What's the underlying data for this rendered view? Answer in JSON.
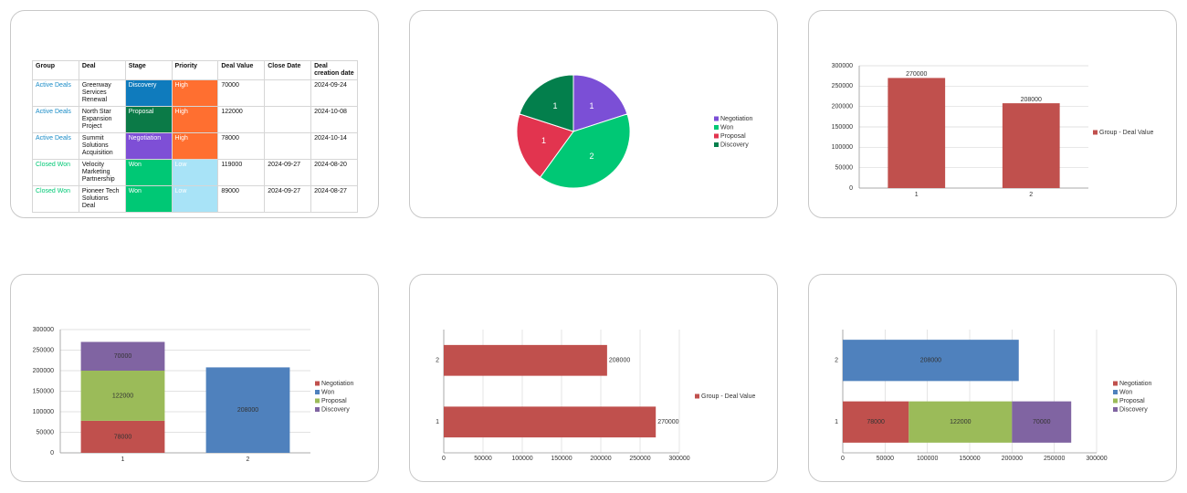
{
  "table": {
    "headers": [
      "Group",
      "Deal",
      "Stage",
      "Priority",
      "Deal Value",
      "Close Date",
      "Deal creation date"
    ],
    "rows": [
      [
        "Active Deals",
        "Greenway Services Renewal",
        "Discovery",
        "High",
        70000,
        null,
        "2024-09-24"
      ],
      [
        "Active Deals",
        "North Star Expansion Project",
        "Proposal",
        "High",
        122000,
        null,
        "2024-10-08"
      ],
      [
        "Active Deals",
        "Summit Solutions Acquisition",
        "Negotiation",
        "High",
        78000,
        null,
        "2024-10-14"
      ],
      [
        "Closed Won",
        "Velocity Marketing Partnership",
        "Won",
        "Low",
        119000,
        "2024-09-27",
        "2024-08-20"
      ],
      [
        "Closed Won",
        "Pioneer Tech Solutions Deal",
        "Won",
        "Low",
        89000,
        "2024-09-27",
        "2024-08-27"
      ]
    ],
    "group_colors": {
      "Active Deals": "#1a8cc7",
      "Closed Won": "#00c875"
    },
    "stage_colors": {
      "Discovery": "#0f7bbd",
      "Proposal": "#0b7a47",
      "Negotiation": "#7e4fd6",
      "Won": "#00c875"
    },
    "priority_colors": {
      "High": "#ff6f30",
      "Low": "#a8e3f7"
    }
  },
  "chart_data": [
    {
      "type": "pie",
      "categories": [
        "Negotiation",
        "Won",
        "Proposal",
        "Discovery"
      ],
      "values": [
        1,
        2,
        1,
        1
      ],
      "colors": [
        "#7b4fd6",
        "#00c875",
        "#e2344f",
        "#037f4c"
      ],
      "legend": "right"
    },
    {
      "type": "bar",
      "categories": [
        "1",
        "2"
      ],
      "series": [
        {
          "name": "Group - Deal Value",
          "color": "#c0504d",
          "values": [
            270000,
            208000
          ]
        }
      ],
      "ylim": [
        0,
        300000
      ],
      "yticks": [
        0,
        50000,
        100000,
        150000,
        200000,
        250000,
        300000
      ],
      "grid": true,
      "legend": "right"
    },
    {
      "type": "bar",
      "stacked": true,
      "categories": [
        "1",
        "2"
      ],
      "series": [
        {
          "name": "Negotiation",
          "color": "#c0504d",
          "values": [
            78000,
            null
          ]
        },
        {
          "name": "Won",
          "color": "#4f81bd",
          "values": [
            null,
            208000
          ]
        },
        {
          "name": "Proposal",
          "color": "#9bbb59",
          "values": [
            122000,
            null
          ]
        },
        {
          "name": "Discovery",
          "color": "#8064a2",
          "values": [
            70000,
            null
          ]
        }
      ],
      "ylim": [
        0,
        300000
      ],
      "yticks": [
        0,
        50000,
        100000,
        150000,
        200000,
        250000,
        300000
      ],
      "grid": true,
      "legend": "right"
    },
    {
      "type": "bar",
      "horizontal": true,
      "categories": [
        "1",
        "2"
      ],
      "series": [
        {
          "name": "Group - Deal Value",
          "color": "#c0504d",
          "values": [
            270000,
            208000
          ]
        }
      ],
      "xlim": [
        0,
        300000
      ],
      "xticks": [
        0,
        50000,
        100000,
        150000,
        200000,
        250000,
        300000
      ],
      "grid": true,
      "legend": "right"
    },
    {
      "type": "bar",
      "horizontal": true,
      "stacked": true,
      "categories": [
        "1",
        "2"
      ],
      "series": [
        {
          "name": "Negotiation",
          "color": "#c0504d",
          "values": [
            78000,
            null
          ]
        },
        {
          "name": "Won",
          "color": "#4f81bd",
          "values": [
            null,
            208000
          ]
        },
        {
          "name": "Proposal",
          "color": "#9bbb59",
          "values": [
            122000,
            null
          ]
        },
        {
          "name": "Discovery",
          "color": "#8064a2",
          "values": [
            70000,
            null
          ]
        }
      ],
      "xlim": [
        0,
        300000
      ],
      "xticks": [
        0,
        50000,
        100000,
        150000,
        200000,
        250000,
        300000
      ],
      "grid": true,
      "legend": "right"
    }
  ]
}
